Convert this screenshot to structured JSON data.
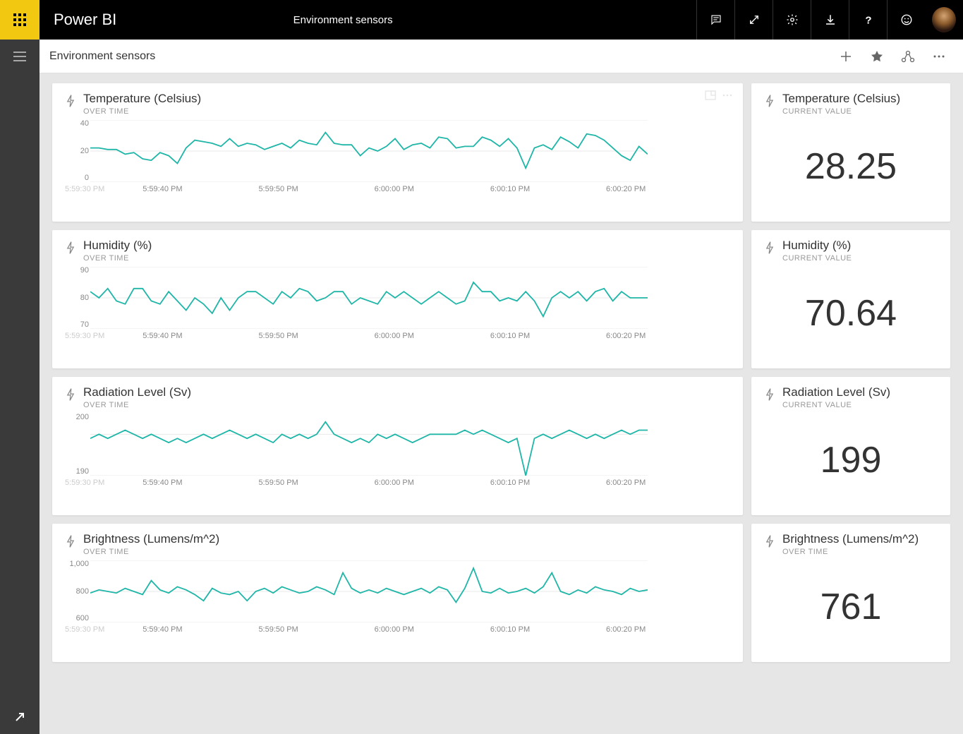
{
  "app": {
    "brand": "Power BI",
    "dashboard_title": "Environment sensors"
  },
  "subheader": {
    "title": "Environment sensors"
  },
  "colors": {
    "line": "#1fb6a8",
    "grid": "#eaeaea",
    "text": "#333333",
    "muted": "#999999",
    "bg": "#e6e6e6",
    "tile_bg": "#ffffff",
    "accent": "#f2c811"
  },
  "x_axis": {
    "faded_label": "5:59:30 PM",
    "labels": [
      "5:59:40 PM",
      "5:59:50 PM",
      "6:00:00 PM",
      "6:00:10 PM",
      "6:00:20 PM"
    ]
  },
  "sensors": [
    {
      "key": "temperature",
      "title": "Temperature (Celsius)",
      "chart_subtitle": "OVER TIME",
      "value_subtitle": "CURRENT VALUE",
      "current_value": "28.25",
      "ylim": [
        0,
        40
      ],
      "yticks": [
        40,
        20,
        0
      ],
      "values": [
        22,
        22,
        21,
        21,
        18,
        19,
        15,
        14,
        19,
        17,
        12,
        22,
        27,
        26,
        25,
        23,
        28,
        23,
        25,
        24,
        21,
        23,
        25,
        22,
        27,
        25,
        24,
        32,
        25,
        24,
        24,
        17,
        22,
        20,
        23,
        28,
        21,
        24,
        25,
        22,
        29,
        28,
        22,
        23,
        23,
        29,
        27,
        23,
        28,
        22,
        9,
        22,
        24,
        21,
        29,
        26,
        22,
        31,
        30,
        27,
        22,
        17,
        14,
        23,
        18
      ]
    },
    {
      "key": "humidity",
      "title": "Humidity (%)",
      "chart_subtitle": "OVER TIME",
      "value_subtitle": "CURRENT VALUE",
      "current_value": "70.64",
      "ylim": [
        70,
        90
      ],
      "yticks": [
        90,
        80,
        70
      ],
      "values": [
        82,
        80,
        83,
        79,
        78,
        83,
        83,
        79,
        78,
        82,
        79,
        76,
        80,
        78,
        75,
        80,
        76,
        80,
        82,
        82,
        80,
        78,
        82,
        80,
        83,
        82,
        79,
        80,
        82,
        82,
        78,
        80,
        79,
        78,
        82,
        80,
        82,
        80,
        78,
        80,
        82,
        80,
        78,
        79,
        85,
        82,
        82,
        79,
        80,
        79,
        82,
        79,
        74,
        80,
        82,
        80,
        82,
        79,
        82,
        83,
        79,
        82,
        80,
        80,
        80
      ]
    },
    {
      "key": "radiation",
      "title": "Radiation Level (Sv)",
      "chart_subtitle": "OVER TIME",
      "value_subtitle": "CURRENT VALUE",
      "current_value": "199",
      "ylim": [
        190,
        205
      ],
      "yticks": [
        200,
        190
      ],
      "values": [
        199,
        200,
        199,
        200,
        201,
        200,
        199,
        200,
        199,
        198,
        199,
        198,
        199,
        200,
        199,
        200,
        201,
        200,
        199,
        200,
        199,
        198,
        200,
        199,
        200,
        199,
        200,
        203,
        200,
        199,
        198,
        199,
        198,
        200,
        199,
        200,
        199,
        198,
        199,
        200,
        200,
        200,
        200,
        201,
        200,
        201,
        200,
        199,
        198,
        199,
        190,
        199,
        200,
        199,
        200,
        201,
        200,
        199,
        200,
        199,
        200,
        201,
        200,
        201,
        201
      ]
    },
    {
      "key": "brightness",
      "title": "Brightness (Lumens/m^2)",
      "chart_subtitle": "OVER TIME",
      "value_subtitle": "OVER TIME",
      "current_value": "761",
      "ylim": [
        600,
        1000
      ],
      "yticks": [
        1000,
        800,
        600
      ],
      "values": [
        790,
        810,
        800,
        790,
        820,
        800,
        780,
        870,
        810,
        790,
        830,
        810,
        780,
        740,
        820,
        790,
        780,
        800,
        740,
        800,
        820,
        790,
        830,
        810,
        790,
        800,
        830,
        810,
        780,
        920,
        820,
        790,
        810,
        790,
        820,
        800,
        780,
        800,
        820,
        790,
        830,
        810,
        730,
        820,
        950,
        800,
        790,
        820,
        790,
        800,
        820,
        790,
        830,
        920,
        800,
        780,
        810,
        790,
        830,
        810,
        800,
        780,
        820,
        800,
        810
      ]
    }
  ]
}
